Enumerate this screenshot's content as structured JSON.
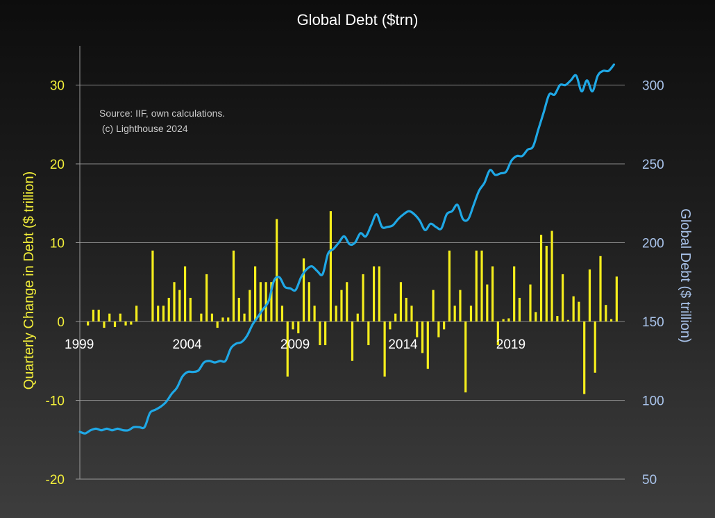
{
  "chart_data": {
    "type": "bar+line",
    "title": "Global Debt ($trn)",
    "annotation_lines": [
      "Source: IIF, own calculations.",
      " (c) Lighthouse 2024"
    ],
    "ylabel_left": "Quarterly Change in Debt ($ trillion)",
    "ylabel_right": "Global Debt ($ trillion)",
    "ylim_left": [
      -20,
      30
    ],
    "ylim_right": [
      50,
      300
    ],
    "yticks_left": [
      30,
      20,
      10,
      0,
      -10,
      -20
    ],
    "yticks_right": [
      300,
      250,
      200,
      150,
      100,
      50
    ],
    "x_tick_labels": [
      "1999",
      "2004",
      "2009",
      "2014",
      "2019"
    ],
    "x_range": [
      1999.0,
      2024.25
    ],
    "grid": true,
    "colors": {
      "bars": "#f5ee1c",
      "line": "#1fa8e6",
      "left_axis": "#f2ee3a",
      "right_axis": "#a9c3ea"
    },
    "series": [
      {
        "name": "Quarterly Change in Debt ($ trillion)",
        "type": "bar",
        "axis": "left",
        "x_start": 1999.0,
        "step": 0.25,
        "values": [
          0,
          -0.5,
          1.5,
          1.5,
          -0.8,
          1.0,
          -0.7,
          1.0,
          -0.5,
          -0.4,
          2.0,
          0,
          0,
          9.0,
          2.0,
          2.0,
          3.0,
          5.0,
          4.0,
          7.0,
          3.0,
          0,
          1.0,
          6.0,
          1.0,
          -0.8,
          0.5,
          0.5,
          9.0,
          3.0,
          1.0,
          4.0,
          7.0,
          5.0,
          5.0,
          5.0,
          13.0,
          2.0,
          -7.0,
          -1.0,
          -1.5,
          8.0,
          5.0,
          2.0,
          -3.0,
          -3.0,
          14.0,
          2.0,
          4.0,
          5.0,
          -5.0,
          1.0,
          6.0,
          -3.0,
          7.0,
          7.0,
          -7.0,
          -1.0,
          1.0,
          5.0,
          3.0,
          2.0,
          -2.0,
          -4.0,
          -6.0,
          4.0,
          -2.0,
          -1.0,
          9.0,
          2.0,
          4.0,
          -9.0,
          2.0,
          9.0,
          9.0,
          4.7,
          7.0,
          -3.0,
          0.3,
          0.4,
          7.0,
          3.0,
          0,
          4.7,
          1.2,
          11.0,
          9.6,
          11.5,
          0.7,
          6.0,
          0.2,
          3.2,
          2.5,
          -9.2,
          6.6,
          -6.5,
          8.3,
          2.1,
          0.3,
          5.7
        ]
      },
      {
        "name": "Global Debt ($ trillion)",
        "type": "line",
        "axis": "right",
        "points": [
          [
            1999.0,
            80
          ],
          [
            1999.25,
            79
          ],
          [
            1999.5,
            81
          ],
          [
            1999.75,
            82
          ],
          [
            2000.0,
            81
          ],
          [
            2000.25,
            82
          ],
          [
            2000.5,
            81
          ],
          [
            2000.75,
            82
          ],
          [
            2001.0,
            81
          ],
          [
            2001.25,
            81
          ],
          [
            2001.5,
            83
          ],
          [
            2001.75,
            83
          ],
          [
            2002.0,
            83
          ],
          [
            2002.25,
            92
          ],
          [
            2002.5,
            94
          ],
          [
            2002.75,
            96
          ],
          [
            2003.0,
            99
          ],
          [
            2003.25,
            104
          ],
          [
            2003.5,
            108
          ],
          [
            2003.75,
            115
          ],
          [
            2004.0,
            118
          ],
          [
            2004.25,
            118
          ],
          [
            2004.5,
            119
          ],
          [
            2004.75,
            124
          ],
          [
            2005.0,
            125
          ],
          [
            2005.25,
            124
          ],
          [
            2005.5,
            125
          ],
          [
            2005.75,
            125
          ],
          [
            2006.0,
            133
          ],
          [
            2006.25,
            136
          ],
          [
            2006.5,
            137
          ],
          [
            2006.75,
            141
          ],
          [
            2007.0,
            148
          ],
          [
            2007.25,
            153
          ],
          [
            2007.5,
            158
          ],
          [
            2007.75,
            163
          ],
          [
            2008.0,
            176
          ],
          [
            2008.25,
            178
          ],
          [
            2008.5,
            172
          ],
          [
            2008.75,
            171
          ],
          [
            2009.0,
            170
          ],
          [
            2009.25,
            178
          ],
          [
            2009.5,
            183
          ],
          [
            2009.75,
            185
          ],
          [
            2010.0,
            182
          ],
          [
            2010.25,
            180
          ],
          [
            2010.5,
            193
          ],
          [
            2010.75,
            196
          ],
          [
            2011.0,
            200
          ],
          [
            2011.25,
            204
          ],
          [
            2011.5,
            199
          ],
          [
            2011.75,
            200
          ],
          [
            2012.0,
            206
          ],
          [
            2012.25,
            204
          ],
          [
            2012.5,
            211
          ],
          [
            2012.75,
            218
          ],
          [
            2013.0,
            210
          ],
          [
            2013.25,
            210
          ],
          [
            2013.5,
            211
          ],
          [
            2013.75,
            215
          ],
          [
            2014.0,
            218
          ],
          [
            2014.25,
            220
          ],
          [
            2014.5,
            218
          ],
          [
            2014.75,
            214
          ],
          [
            2015.0,
            208
          ],
          [
            2015.25,
            212
          ],
          [
            2015.5,
            210
          ],
          [
            2015.75,
            209
          ],
          [
            2016.0,
            218
          ],
          [
            2016.25,
            220
          ],
          [
            2016.5,
            224
          ],
          [
            2016.75,
            215
          ],
          [
            2017.0,
            215
          ],
          [
            2017.25,
            224
          ],
          [
            2017.5,
            233
          ],
          [
            2017.75,
            238
          ],
          [
            2018.0,
            246
          ],
          [
            2018.25,
            243
          ],
          [
            2018.5,
            244
          ],
          [
            2018.75,
            245
          ],
          [
            2019.0,
            252
          ],
          [
            2019.25,
            255
          ],
          [
            2019.5,
            255
          ],
          [
            2019.75,
            259
          ],
          [
            2020.0,
            261
          ],
          [
            2020.25,
            272
          ],
          [
            2020.5,
            283
          ],
          [
            2020.75,
            294
          ],
          [
            2021.0,
            294
          ],
          [
            2021.25,
            300
          ],
          [
            2021.5,
            300
          ],
          [
            2021.75,
            303
          ],
          [
            2022.0,
            306
          ],
          [
            2022.25,
            296
          ],
          [
            2022.5,
            303
          ],
          [
            2022.75,
            296
          ],
          [
            2023.0,
            306
          ],
          [
            2023.25,
            309
          ],
          [
            2023.5,
            309
          ],
          [
            2023.75,
            313
          ]
        ]
      }
    ]
  }
}
